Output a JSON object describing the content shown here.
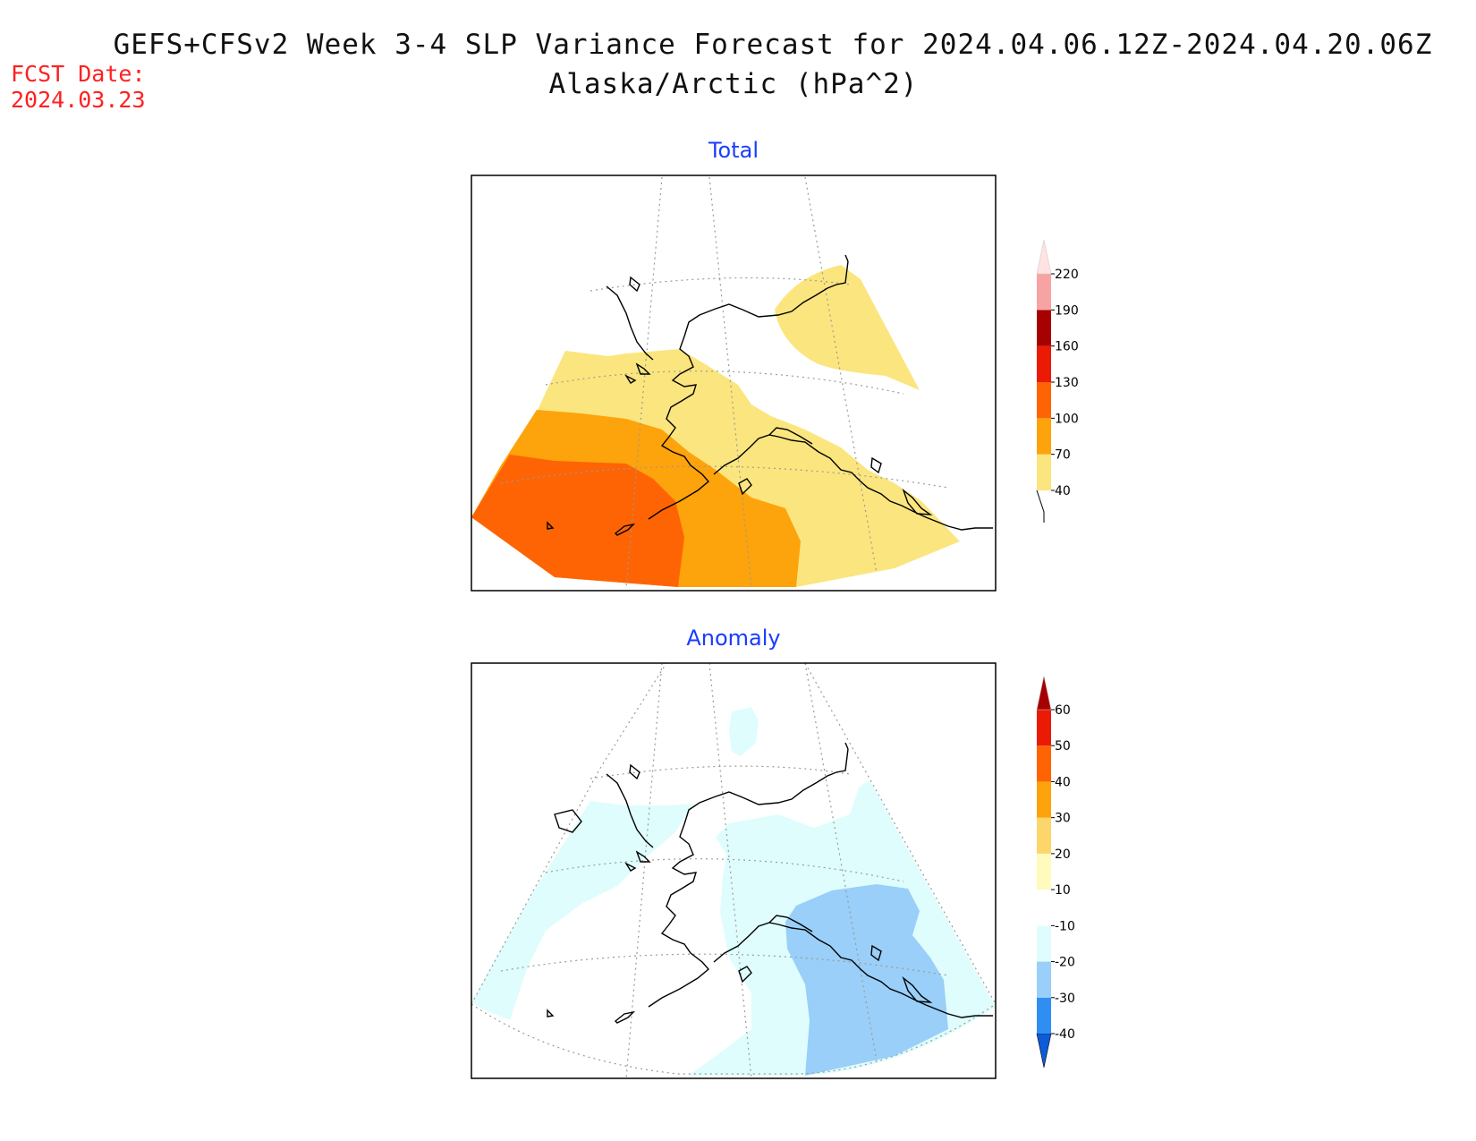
{
  "header": {
    "title": "GEFS+CFSv2 Week 3-4 SLP Variance Forecast for 2024.04.06.12Z-2024.04.20.06Z",
    "subtitle": "Alaska/Arctic (hPa^2)",
    "fcst_label": "FCST Date:",
    "fcst_value": "2024.03.23"
  },
  "panels": [
    {
      "title": "Total",
      "colorbar": {
        "labels": [
          "40",
          "70",
          "100",
          "130",
          "160",
          "190",
          "220"
        ],
        "colors": [
          "#fbe57e",
          "#fda30b",
          "#fe6403",
          "#ea1a04",
          "#a60000",
          "#f7a3a3",
          "#ffe2e2"
        ],
        "extend": "max"
      }
    },
    {
      "title": "Anomaly",
      "colorbar": {
        "labels": [
          "-40",
          "-30",
          "-20",
          "-10",
          "10",
          "20",
          "30",
          "40",
          "50",
          "60"
        ],
        "colors": [
          "#0d5bd9",
          "#2f8ef2",
          "#99cff8",
          "#dffdfd",
          "#ffffff",
          "#fefbbc",
          "#fcd56b",
          "#fda30b",
          "#fe6403",
          "#ea1a04",
          "#a60000"
        ],
        "extend": "both"
      }
    }
  ],
  "colors": {
    "title_text": "#111111",
    "fcst_text": "#ff2020",
    "panel_title": "#1a3cff",
    "map_frame": "#000000",
    "coastline": "#000000",
    "graticule": "#9a9a9a"
  }
}
